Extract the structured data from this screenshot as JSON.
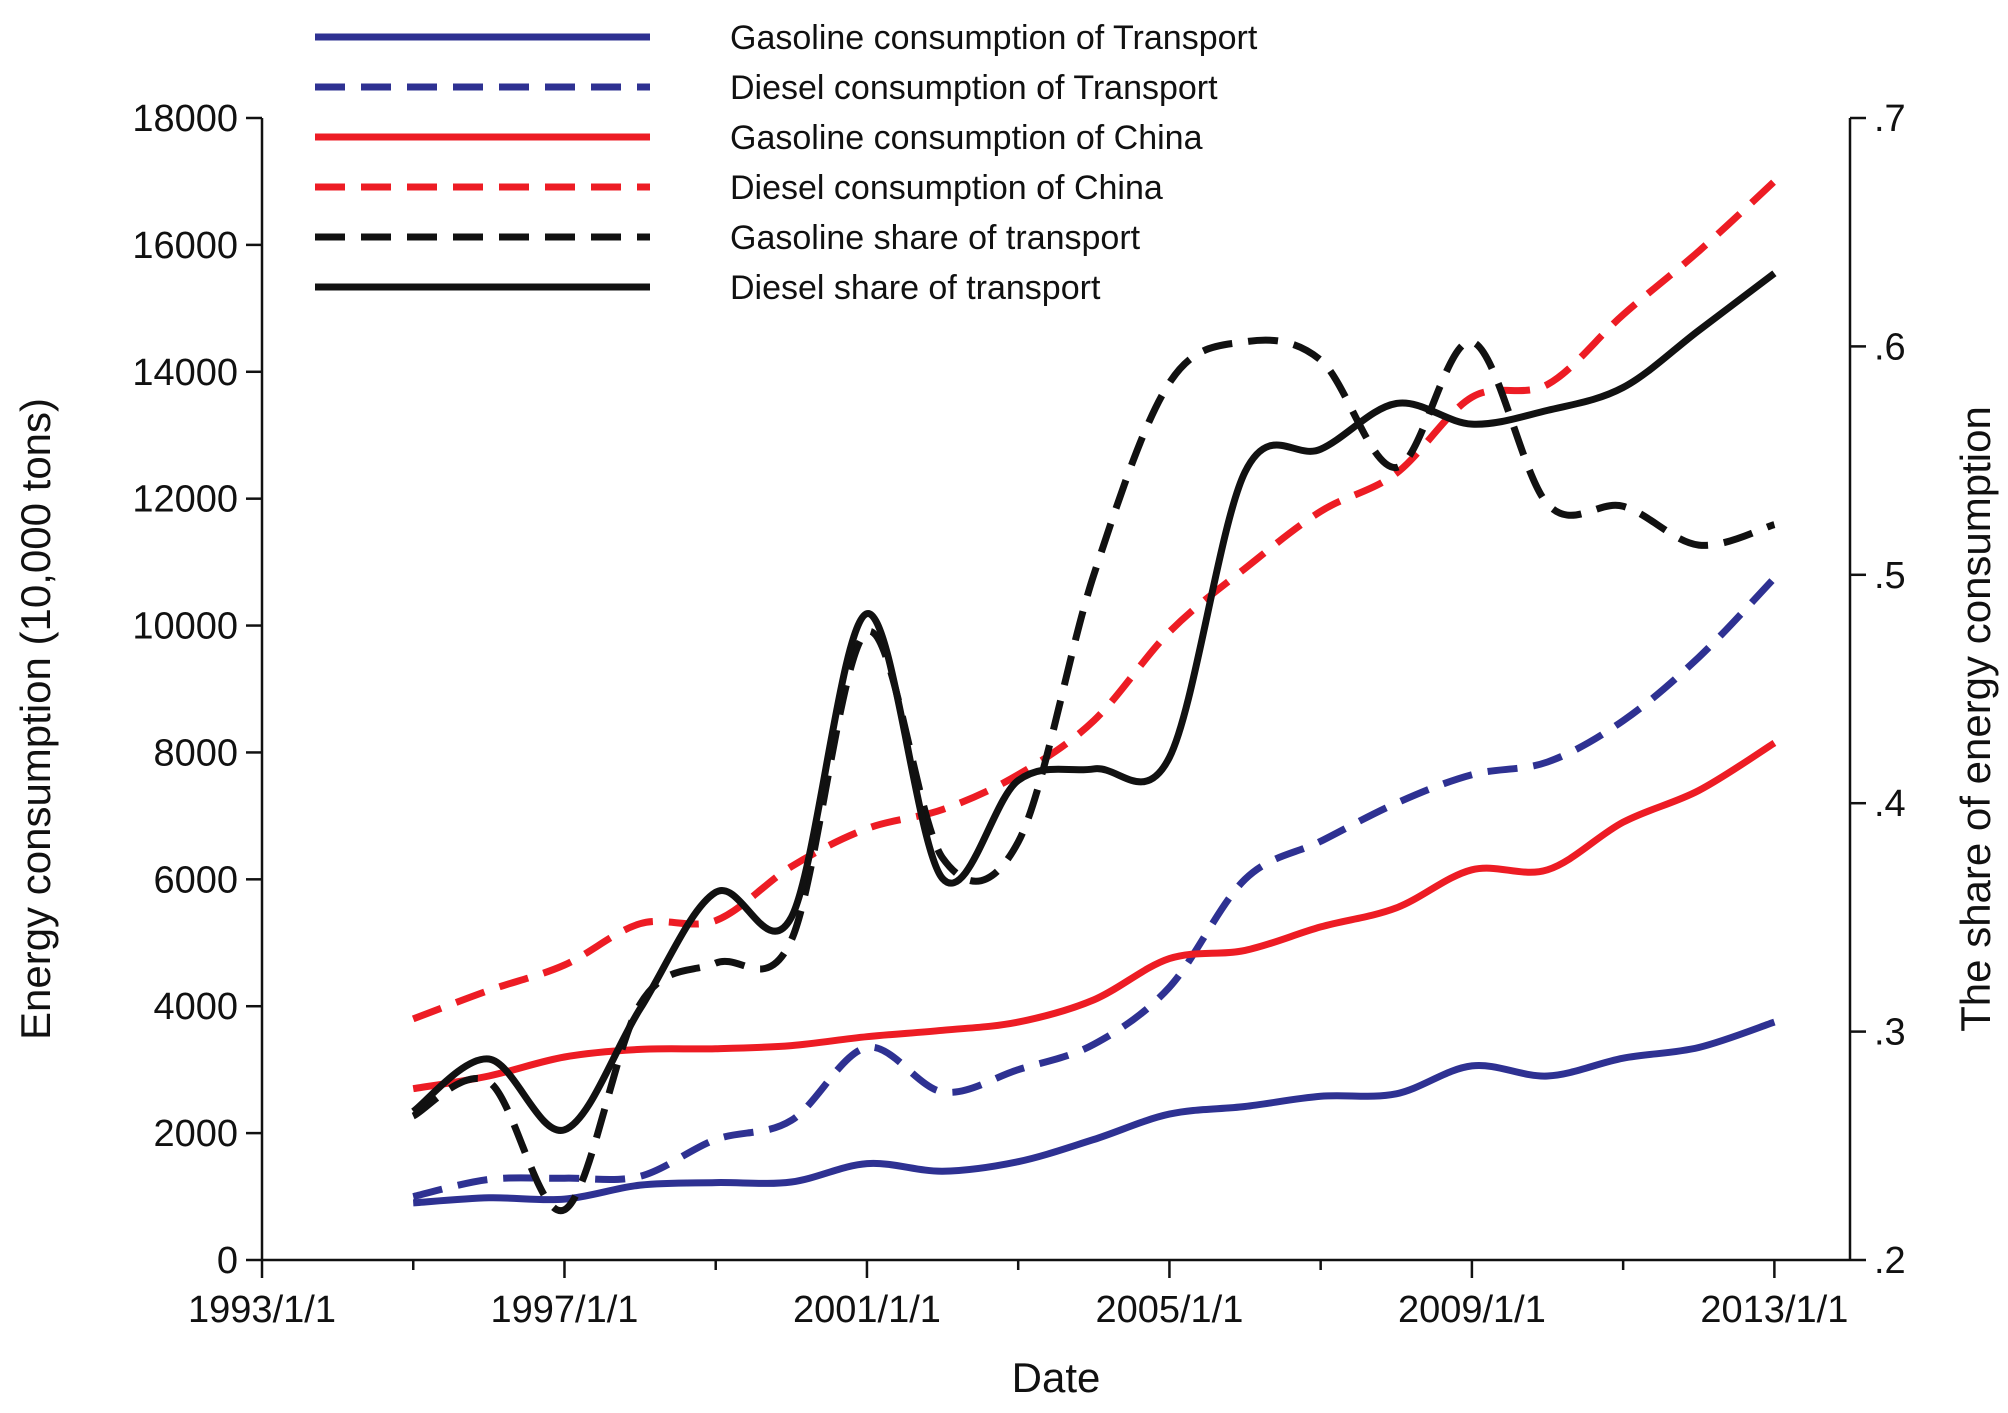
{
  "chart_data": {
    "type": "line",
    "title": "",
    "xlabel": "Date",
    "ylabel_left": "Energy consumption (10,000 tons)",
    "ylabel_right": "The share of energy consumption",
    "x": [
      1995,
      1996,
      1997,
      1998,
      1999,
      2000,
      2001,
      2002,
      2003,
      2004,
      2005,
      2006,
      2007,
      2008,
      2009,
      2010,
      2011,
      2012,
      2013
    ],
    "x_ticks": [
      1993,
      1997,
      2001,
      2005,
      2009,
      2013
    ],
    "x_tick_labels": [
      "1993/1/1",
      "1997/1/1",
      "2001/1/1",
      "2005/1/1",
      "2009/1/1",
      "2013/1/1"
    ],
    "x_minor_ticks": [
      1995,
      1999,
      2003,
      2007,
      2011
    ],
    "xlim": [
      1993,
      2014
    ],
    "ylim_left": [
      0,
      18000
    ],
    "y_ticks_left": [
      0,
      2000,
      4000,
      6000,
      8000,
      10000,
      12000,
      14000,
      16000,
      18000
    ],
    "y_tick_labels_left": [
      "0",
      "2000",
      "4000",
      "6000",
      "8000",
      "10000",
      "12000",
      "14000",
      "16000",
      "18000"
    ],
    "ylim_right": [
      0.2,
      0.7
    ],
    "y_ticks_right": [
      0.2,
      0.3,
      0.4,
      0.5,
      0.6,
      0.7
    ],
    "y_tick_labels_right": [
      ".2",
      ".3",
      ".4",
      ".5",
      ".6",
      ".7"
    ],
    "grid": false,
    "legend_position": "top-left",
    "series": [
      {
        "name": "Gasoline consumption of Transport",
        "axis": "left",
        "color": "#2e3192",
        "dash": "solid",
        "values": [
          900,
          980,
          960,
          1180,
          1220,
          1230,
          1520,
          1400,
          1550,
          1900,
          2300,
          2420,
          2580,
          2620,
          3060,
          2900,
          3180,
          3350,
          3750
        ]
      },
      {
        "name": "Diesel consumption of Transport",
        "axis": "left",
        "color": "#2e3192",
        "dash": "dashed",
        "values": [
          1000,
          1270,
          1290,
          1320,
          1900,
          2200,
          3350,
          2650,
          3000,
          3400,
          4300,
          6000,
          6600,
          7200,
          7650,
          7850,
          8500,
          9500,
          10750
        ]
      },
      {
        "name": "Gasoline consumption of China",
        "axis": "left",
        "color": "#ed1c24",
        "dash": "solid",
        "values": [
          2700,
          2900,
          3200,
          3320,
          3330,
          3380,
          3520,
          3620,
          3750,
          4100,
          4750,
          4880,
          5250,
          5550,
          6150,
          6150,
          6900,
          7400,
          8150
        ]
      },
      {
        "name": "Diesel consumption of China",
        "axis": "left",
        "color": "#ed1c24",
        "dash": "dashed",
        "values": [
          3800,
          4250,
          4650,
          5300,
          5350,
          6200,
          6800,
          7100,
          7650,
          8500,
          9900,
          10900,
          11800,
          12400,
          13600,
          13800,
          14900,
          15900,
          17000
        ]
      },
      {
        "name": "Gasoline share of transport",
        "axis": "right",
        "color": "#111111",
        "dash": "dashed",
        "values": [
          0.263,
          0.278,
          0.222,
          0.312,
          0.33,
          0.34,
          0.475,
          0.376,
          0.383,
          0.5,
          0.584,
          0.602,
          0.594,
          0.547,
          0.602,
          0.531,
          0.53,
          0.513,
          0.522
        ]
      },
      {
        "name": "Diesel share  of transport",
        "axis": "right",
        "color": "#111111",
        "dash": "solid",
        "values": [
          0.265,
          0.288,
          0.257,
          0.31,
          0.361,
          0.35,
          0.483,
          0.367,
          0.41,
          0.415,
          0.42,
          0.545,
          0.555,
          0.575,
          0.566,
          0.572,
          0.582,
          0.607,
          0.632
        ]
      }
    ]
  }
}
